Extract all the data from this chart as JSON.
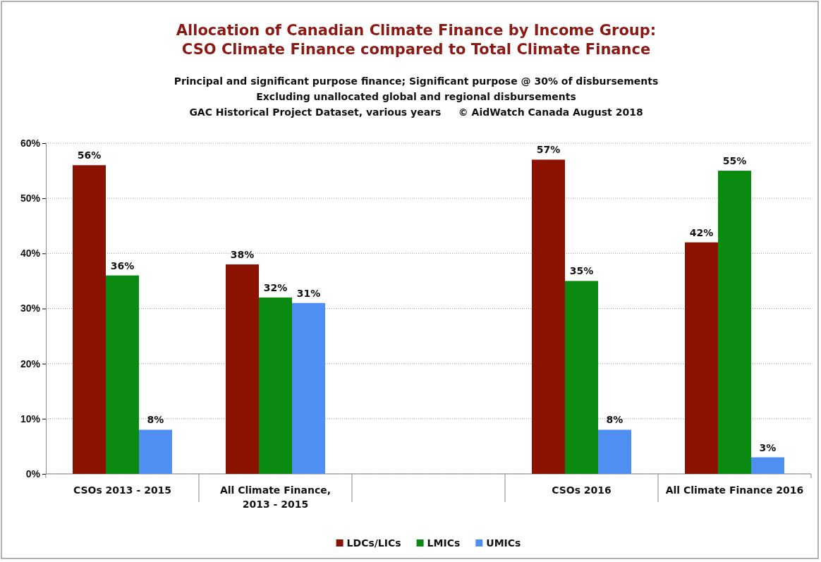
{
  "chart_data": {
    "type": "bar",
    "title": "Allocation of Canadian Climate Finance by Income Group:\nCSO Climate Finance compared to Total Climate Finance",
    "subtitle": "Principal and significant purpose finance; Significant purpose @ 30% of disbursements\nExcluding unallocated global and regional disbursements\nGAC Historical Project Dataset, various years     © AidWatch Canada August 2018",
    "categories": [
      "CSOs 2013 - 2015",
      "All Climate Finance,\n2013 - 2015",
      null,
      "CSOs 2016",
      "All Climate Finance 2016"
    ],
    "series": [
      {
        "name": "LDCs/LICs",
        "color": "#8b1100",
        "values": [
          56,
          38,
          null,
          57,
          42
        ]
      },
      {
        "name": "LMICs",
        "color": "#0b8a12",
        "values": [
          36,
          32,
          null,
          35,
          55
        ]
      },
      {
        "name": "UMICs",
        "color": "#4f8ff2",
        "values": [
          8,
          31,
          null,
          8,
          3
        ]
      }
    ],
    "ylim": [
      0,
      60
    ],
    "yticks": [
      {
        "value": 0,
        "label": "0%"
      },
      {
        "value": 10,
        "label": "10%"
      },
      {
        "value": 20,
        "label": "20%"
      },
      {
        "value": 30,
        "label": "30%"
      },
      {
        "value": 40,
        "label": "40%"
      },
      {
        "value": 50,
        "label": "50%"
      },
      {
        "value": 60,
        "label": "60%"
      }
    ],
    "grid": "y",
    "legend": "bottom",
    "value_labels": [
      [
        "56%",
        "38%",
        null,
        "57%",
        "42%"
      ],
      [
        "36%",
        "32%",
        null,
        "35%",
        "55%"
      ],
      [
        "8%",
        "31%",
        null,
        "8%",
        "3%"
      ]
    ]
  }
}
